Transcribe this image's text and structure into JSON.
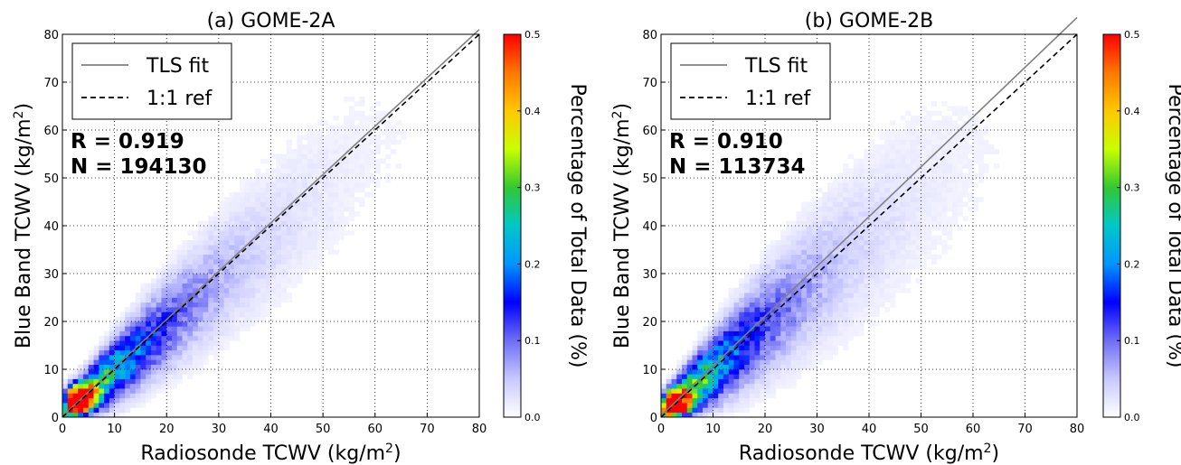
{
  "colors": {
    "fit_line": "#808080",
    "ref_line": "#000000",
    "grid": "#000000",
    "colormap": [
      "#ffffff",
      "#c8c8ff",
      "#6e6ef5",
      "#0000ff",
      "#0096ff",
      "#00c8c8",
      "#32c832",
      "#c8ff00",
      "#ffc800",
      "#ff7800",
      "#ff0000"
    ]
  },
  "chart_data": [
    {
      "type": "heatmap",
      "title": "(a) GOME-2A",
      "xlabel": "Radiosonde TCWV (kg/m",
      "xlabel_sup": "2",
      "xlabel_end": ")",
      "ylabel": "Blue Band TCWV (kg/m",
      "ylabel_sup": "2",
      "ylabel_end": ")",
      "xlim": [
        0,
        80
      ],
      "ylim": [
        0,
        80
      ],
      "xticks": [
        "0",
        "10",
        "20",
        "30",
        "40",
        "50",
        "60",
        "70",
        "80"
      ],
      "yticks": [
        "0",
        "10",
        "20",
        "30",
        "40",
        "50",
        "60",
        "70",
        "80"
      ],
      "grid": true,
      "legend": {
        "placement": "top-left",
        "entries": [
          "TLS fit",
          "1:1 ref"
        ]
      },
      "stats": {
        "r_label": "R = 0.919",
        "n_label": "N = 194130"
      },
      "fit_line": {
        "x": [
          0,
          80
        ],
        "y": [
          0.2,
          81
        ]
      },
      "ref_line": {
        "x": [
          0,
          80
        ],
        "y": [
          0,
          80
        ]
      },
      "density": {
        "peak_value": 0.5,
        "peak_at": [
          3,
          4
        ],
        "spread": 0.15,
        "slope": 1.02,
        "max_extent": 62,
        "seed": 11
      },
      "colorbar": {
        "label": "Percentage of Total Data (%)",
        "range": [
          0,
          0.5
        ],
        "ticks": [
          "0.0",
          "0.1",
          "0.2",
          "0.3",
          "0.4",
          "0.5"
        ]
      }
    },
    {
      "type": "heatmap",
      "title": "(b) GOME-2B",
      "xlabel": "Radiosonde TCWV (kg/m",
      "xlabel_sup": "2",
      "xlabel_end": ")",
      "ylabel": "Blue Band TCWV (kg/m",
      "ylabel_sup": "2",
      "ylabel_end": ")",
      "xlim": [
        0,
        80
      ],
      "ylim": [
        0,
        80
      ],
      "xticks": [
        "0",
        "10",
        "20",
        "30",
        "40",
        "50",
        "60",
        "70",
        "80"
      ],
      "yticks": [
        "0",
        "10",
        "20",
        "30",
        "40",
        "50",
        "60",
        "70",
        "80"
      ],
      "grid": true,
      "legend": {
        "placement": "top-left",
        "entries": [
          "TLS fit",
          "1:1 ref"
        ]
      },
      "stats": {
        "r_label": "R = 0.910",
        "n_label": "N = 113734"
      },
      "fit_line": {
        "x": [
          0,
          80
        ],
        "y": [
          0.3,
          83.5
        ]
      },
      "ref_line": {
        "x": [
          0,
          80
        ],
        "y": [
          0,
          80
        ]
      },
      "density": {
        "peak_value": 0.45,
        "peak_at": [
          2.5,
          3
        ],
        "spread": 0.2,
        "slope": 1.05,
        "max_extent": 60,
        "seed": 29
      },
      "colorbar": {
        "label": "Percentage of Total Data (%)",
        "range": [
          0,
          0.5
        ],
        "ticks": [
          "0.0",
          "0.1",
          "0.2",
          "0.3",
          "0.4",
          "0.5"
        ]
      }
    }
  ]
}
